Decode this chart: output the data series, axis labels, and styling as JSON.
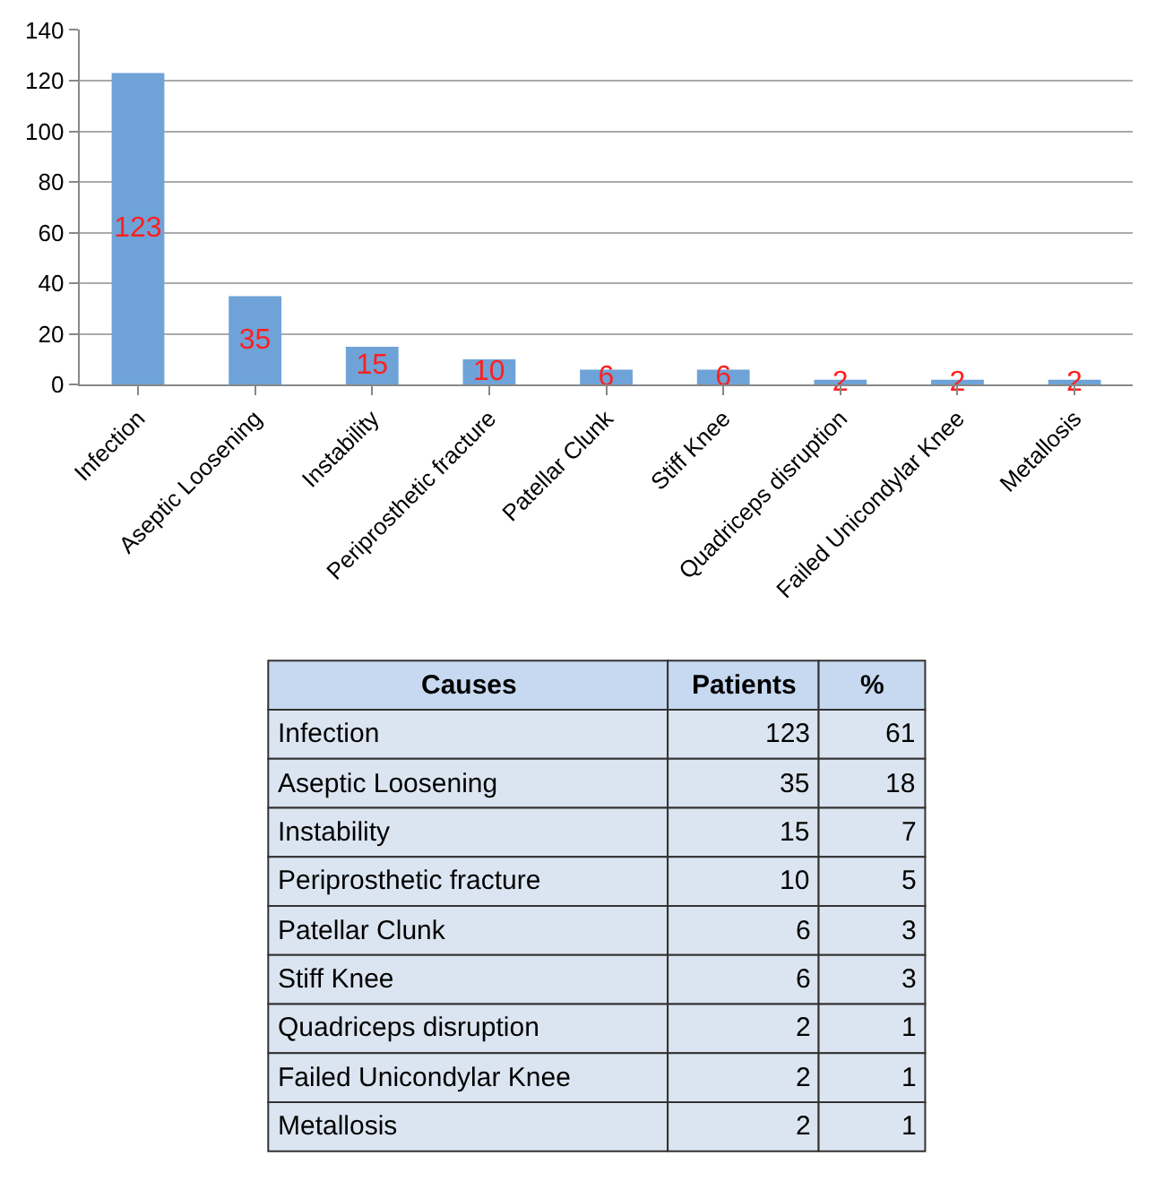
{
  "chart_data": [
    {
      "type": "bar",
      "categories": [
        "Infection",
        "Aseptic Loosening",
        "Instability",
        "Periprosthetic fracture",
        "Patellar Clunk",
        "Stiff Knee",
        "Quadriceps disruption",
        "Failed Unicondylar Knee",
        "Metallosis"
      ],
      "values": [
        123,
        35,
        15,
        10,
        6,
        6,
        2,
        2,
        2
      ],
      "color": "#6fa3d8",
      "ylim": [
        0,
        140
      ],
      "yticks": [
        0,
        20,
        40,
        60,
        80,
        100,
        120,
        140
      ],
      "grid": "y",
      "data_labels": true
    },
    {
      "type": "other",
      "ylabel": "Causes",
      "data_labels": true,
      "categories": [
        "Infection",
        "Aseptic Loosening",
        "Instability",
        "Periprosthetic fracture",
        "Patellar Clunk",
        "Stiff Knee",
        "Quadriceps disruption",
        "Failed Unicondylar Knee",
        "Metallosis"
      ],
      "series": [
        {
          "name": "Patients",
          "values": [
            123,
            35,
            15,
            10,
            6,
            6,
            2,
            2,
            2
          ]
        },
        {
          "name": "%",
          "values": [
            61,
            18,
            7,
            5,
            3,
            3,
            1,
            1,
            1
          ]
        }
      ]
    }
  ]
}
